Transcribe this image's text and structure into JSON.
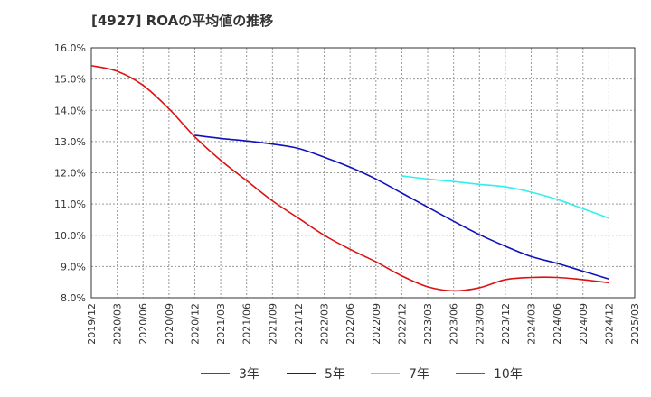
{
  "title": "[4927]  ROAの平均値の推移",
  "chart_data": {
    "type": "line",
    "title": "[4927]  ROAの平均値の推移",
    "xlabel": "",
    "ylabel": "",
    "ylim": [
      8.0,
      16.0
    ],
    "y_ticks": [
      "8.0%",
      "9.0%",
      "10.0%",
      "11.0%",
      "12.0%",
      "13.0%",
      "14.0%",
      "15.0%",
      "16.0%"
    ],
    "x_ticks": [
      "2019/12",
      "2020/03",
      "2020/06",
      "2020/09",
      "2020/12",
      "2021/03",
      "2021/06",
      "2021/09",
      "2021/12",
      "2022/03",
      "2022/06",
      "2022/09",
      "2022/12",
      "2023/03",
      "2023/06",
      "2023/09",
      "2023/12",
      "2024/03",
      "2024/06",
      "2024/09",
      "2024/12",
      "2025/03"
    ],
    "grid": true,
    "legend_position": "bottom",
    "series": [
      {
        "name": "3年",
        "color": "#dd1111",
        "x": [
          "2019/12",
          "2020/03",
          "2020/06",
          "2020/09",
          "2020/12",
          "2021/03",
          "2021/06",
          "2021/09",
          "2021/12",
          "2022/03",
          "2022/06",
          "2022/09",
          "2022/12",
          "2023/03",
          "2023/06",
          "2023/09",
          "2023/12",
          "2024/03",
          "2024/06",
          "2024/09",
          "2024/12"
        ],
        "values": [
          15.43,
          15.25,
          14.8,
          14.05,
          13.15,
          12.4,
          11.75,
          11.1,
          10.55,
          10.0,
          9.55,
          9.15,
          8.7,
          8.35,
          8.22,
          8.32,
          8.58,
          8.65,
          8.65,
          8.58,
          8.48
        ]
      },
      {
        "name": "5年",
        "color": "#1111bb",
        "x": [
          "2020/12",
          "2021/03",
          "2021/06",
          "2021/09",
          "2021/12",
          "2022/03",
          "2022/06",
          "2022/09",
          "2022/12",
          "2023/03",
          "2023/06",
          "2023/09",
          "2023/12",
          "2024/03",
          "2024/06",
          "2024/09",
          "2024/12"
        ],
        "values": [
          13.2,
          13.1,
          13.02,
          12.92,
          12.78,
          12.5,
          12.18,
          11.8,
          11.35,
          10.9,
          10.45,
          10.02,
          9.65,
          9.32,
          9.1,
          8.85,
          8.6
        ]
      },
      {
        "name": "7年",
        "color": "#33eeee",
        "x": [
          "2022/12",
          "2023/03",
          "2023/06",
          "2023/09",
          "2023/12",
          "2024/03",
          "2024/06",
          "2024/09",
          "2024/12"
        ],
        "values": [
          11.9,
          11.8,
          11.72,
          11.63,
          11.55,
          11.38,
          11.15,
          10.85,
          10.55
        ]
      },
      {
        "name": "10年",
        "color": "#228822",
        "x": [],
        "values": []
      }
    ]
  }
}
